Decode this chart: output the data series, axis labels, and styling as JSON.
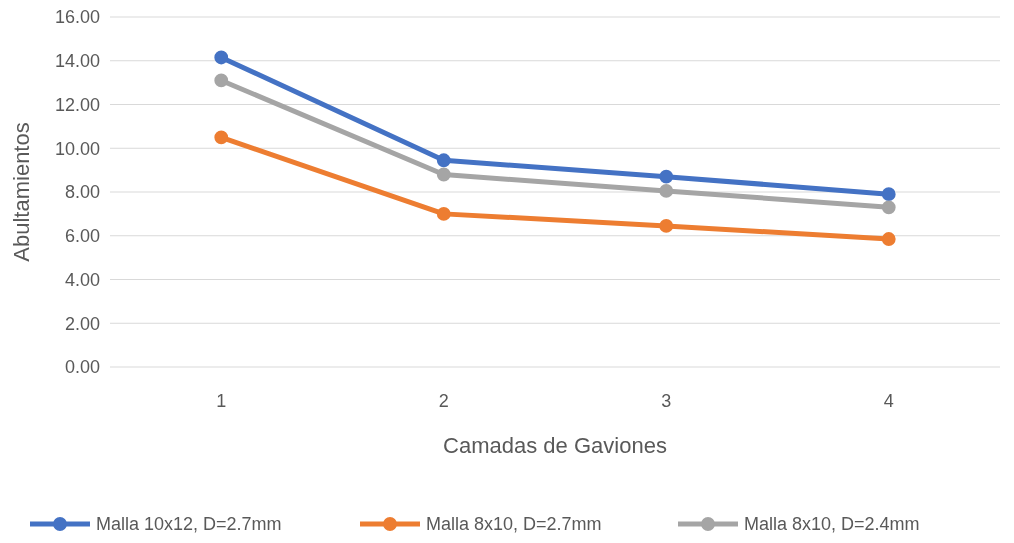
{
  "chart_data": {
    "type": "line",
    "xlabel": "Camadas de Gaviones",
    "ylabel": "Abultamientos",
    "categories": [
      "1",
      "2",
      "3",
      "4"
    ],
    "series": [
      {
        "name": "Malla 10x12, D=2.7mm",
        "color": "#4472c4",
        "values": [
          14.15,
          9.45,
          8.7,
          7.9
        ]
      },
      {
        "name": "Malla 8x10, D=2.7mm",
        "color": "#ed7d31",
        "values": [
          10.5,
          7.0,
          6.45,
          5.85
        ]
      },
      {
        "name": "Malla 8x10, D=2.4mm",
        "color": "#a5a5a5",
        "values": [
          13.1,
          8.8,
          8.05,
          7.3
        ]
      }
    ],
    "ylim": [
      0,
      16
    ],
    "yticks": [
      {
        "value": 0,
        "label": "0.00"
      },
      {
        "value": 2,
        "label": "2.00"
      },
      {
        "value": 4,
        "label": "4.00"
      },
      {
        "value": 6,
        "label": "6.00"
      },
      {
        "value": 8,
        "label": "8.00"
      },
      {
        "value": 10,
        "label": "10.00"
      },
      {
        "value": 12,
        "label": "12.00"
      },
      {
        "value": 14,
        "label": "14.00"
      },
      {
        "value": 16,
        "label": "16.00"
      }
    ],
    "grid": "y",
    "legend": "bottom",
    "marker": "circle",
    "line_style": "solid"
  }
}
